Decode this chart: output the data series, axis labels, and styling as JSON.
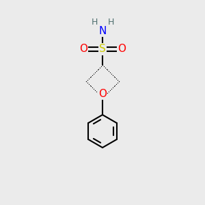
{
  "bg_color": "#ebebeb",
  "atom_colors": {
    "S": "#cccc00",
    "O": "#ff0000",
    "N": "#0000ff",
    "H": "#507070",
    "C": "#000000"
  },
  "bond_color": "#000000",
  "bond_width": 1.5
}
